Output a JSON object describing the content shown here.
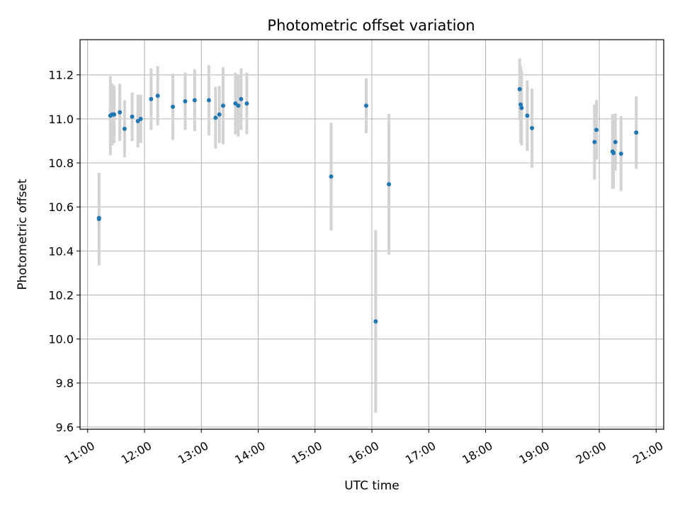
{
  "chart_data": {
    "type": "scatter",
    "title": "Photometric offset variation",
    "xlabel": "UTC time",
    "ylabel": "Photometric offset",
    "xlim": [
      "10:52",
      "21:08"
    ],
    "ylim": [
      9.59,
      11.36
    ],
    "x_ticks": [
      "11:00",
      "12:00",
      "13:00",
      "14:00",
      "15:00",
      "16:00",
      "17:00",
      "18:00",
      "19:00",
      "20:00",
      "21:00"
    ],
    "y_ticks": [
      9.6,
      9.8,
      10.0,
      10.2,
      10.4,
      10.6,
      10.8,
      11.0,
      11.2
    ],
    "y_tick_labels": [
      "9.6",
      "9.8",
      "10.0",
      "10.2",
      "10.4",
      "10.6",
      "10.8",
      "11.0",
      "11.2"
    ],
    "grid": true,
    "point_color": "#1f77b4",
    "errorbar_color": "#d3d3d3",
    "points": [
      {
        "x": "11:12",
        "y": 10.55,
        "err": 0.2
      },
      {
        "x": "11:12",
        "y": 10.545,
        "err": 0.21
      },
      {
        "x": "11:24",
        "y": 11.015,
        "err": 0.18
      },
      {
        "x": "11:26",
        "y": 11.02,
        "err": 0.14
      },
      {
        "x": "11:28",
        "y": 11.02,
        "err": 0.13
      },
      {
        "x": "11:34",
        "y": 11.03,
        "err": 0.13
      },
      {
        "x": "11:39",
        "y": 10.955,
        "err": 0.13
      },
      {
        "x": "11:47",
        "y": 11.01,
        "err": 0.11
      },
      {
        "x": "11:53",
        "y": 10.99,
        "err": 0.12
      },
      {
        "x": "11:56",
        "y": 11.0,
        "err": 0.11
      },
      {
        "x": "12:07",
        "y": 11.09,
        "err": 0.14
      },
      {
        "x": "12:14",
        "y": 11.105,
        "err": 0.135
      },
      {
        "x": "12:30",
        "y": 11.055,
        "err": 0.15
      },
      {
        "x": "12:43",
        "y": 11.08,
        "err": 0.13
      },
      {
        "x": "12:53",
        "y": 11.085,
        "err": 0.14
      },
      {
        "x": "13:08",
        "y": 11.085,
        "err": 0.16
      },
      {
        "x": "13:15",
        "y": 11.005,
        "err": 0.14
      },
      {
        "x": "13:19",
        "y": 11.02,
        "err": 0.13
      },
      {
        "x": "13:23",
        "y": 11.06,
        "err": 0.175
      },
      {
        "x": "13:36",
        "y": 11.07,
        "err": 0.14
      },
      {
        "x": "13:39",
        "y": 11.06,
        "err": 0.14
      },
      {
        "x": "13:42",
        "y": 11.09,
        "err": 0.14
      },
      {
        "x": "13:48",
        "y": 11.07,
        "err": 0.14
      },
      {
        "x": "15:17",
        "y": 10.738,
        "err": 0.245
      },
      {
        "x": "15:54",
        "y": 11.06,
        "err": 0.125
      },
      {
        "x": "16:04",
        "y": 10.08,
        "err": 0.415
      },
      {
        "x": "16:18",
        "y": 10.703,
        "err": 0.32
      },
      {
        "x": "18:36",
        "y": 11.135,
        "err": 0.14
      },
      {
        "x": "18:37",
        "y": 11.065,
        "err": 0.175
      },
      {
        "x": "18:38",
        "y": 11.05,
        "err": 0.17
      },
      {
        "x": "18:44",
        "y": 11.015,
        "err": 0.16
      },
      {
        "x": "18:49",
        "y": 10.958,
        "err": 0.18
      },
      {
        "x": "19:55",
        "y": 10.895,
        "err": 0.17
      },
      {
        "x": "19:57",
        "y": 10.95,
        "err": 0.135
      },
      {
        "x": "20:14",
        "y": 10.852,
        "err": 0.17
      },
      {
        "x": "20:15",
        "y": 10.845,
        "err": 0.16
      },
      {
        "x": "20:17",
        "y": 10.895,
        "err": 0.13
      },
      {
        "x": "20:23",
        "y": 10.842,
        "err": 0.17
      },
      {
        "x": "20:39",
        "y": 10.938,
        "err": 0.165
      }
    ]
  }
}
